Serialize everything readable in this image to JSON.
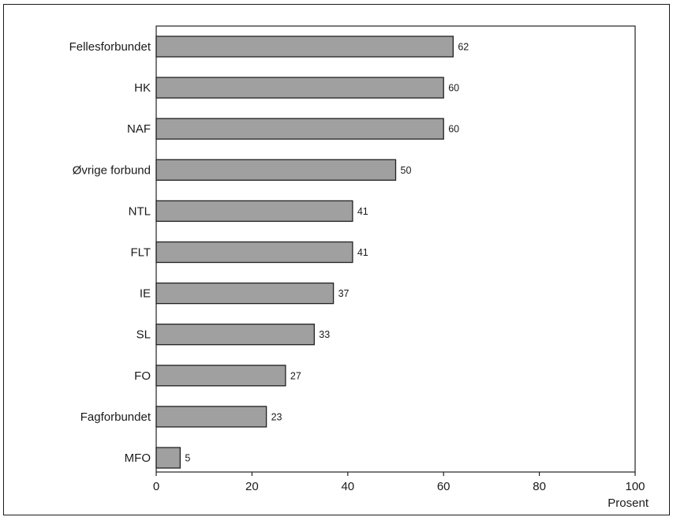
{
  "chart_data": {
    "type": "bar",
    "orientation": "horizontal",
    "categories": [
      "Fellesforbundet",
      "HK",
      "NAF",
      "Øvrige forbund",
      "NTL",
      "FLT",
      "IE",
      "SL",
      "FO",
      "Fagforbundet",
      "MFO"
    ],
    "values": [
      62,
      60,
      60,
      50,
      41,
      41,
      37,
      33,
      27,
      23,
      5
    ],
    "data_labels": [
      "62",
      "60",
      "60",
      "50",
      "41",
      "41",
      "37",
      "33",
      "27",
      "23",
      "5"
    ],
    "xlim": [
      0,
      100
    ],
    "xticks": [
      0,
      20,
      40,
      60,
      80,
      100
    ],
    "xtick_labels": [
      "0",
      "20",
      "40",
      "60",
      "80",
      "100"
    ],
    "xlabel": "Prosent",
    "ylabel": "",
    "title": "",
    "grid": false,
    "legend": "none",
    "colors": {
      "bar_fill": "#a0a0a0",
      "bar_stroke": "#222222",
      "axis": "#222222",
      "text": "#1a1a1a"
    }
  }
}
